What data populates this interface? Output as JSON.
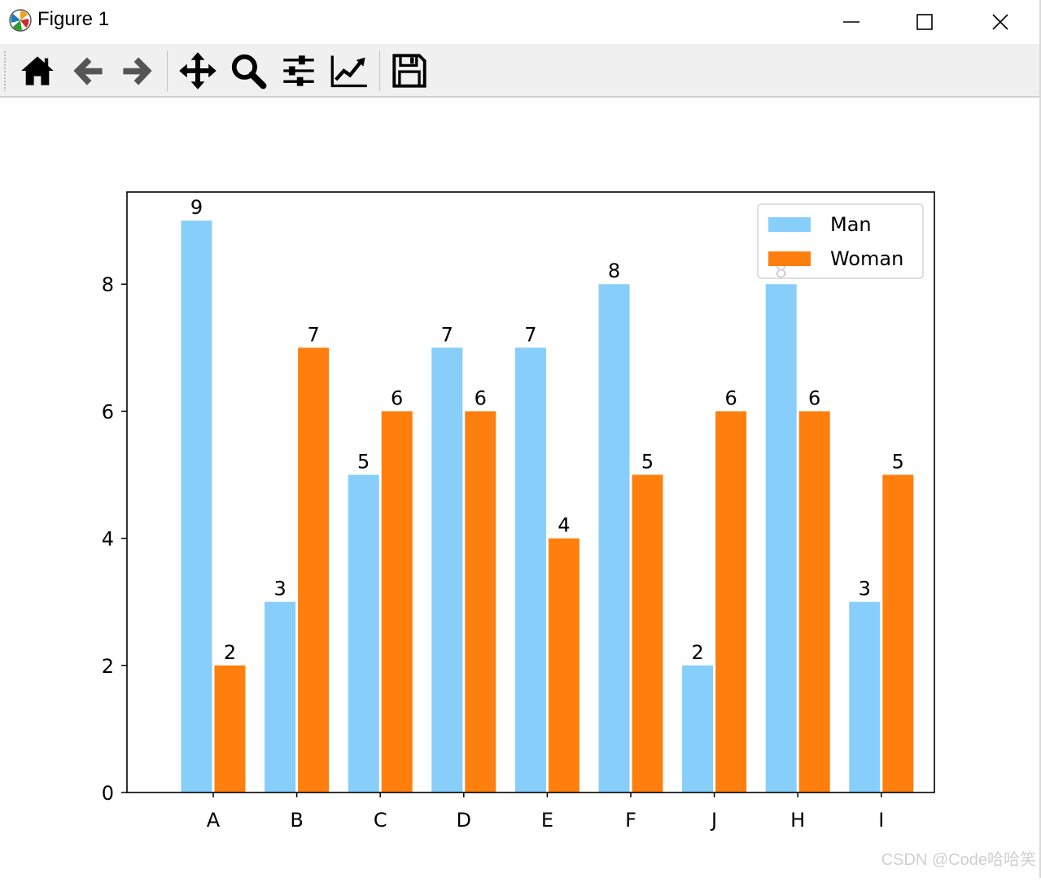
{
  "window": {
    "title": "Figure 1",
    "app_icon": "matplotlib-logo-icon",
    "controls": [
      "minimize-icon",
      "maximize-icon",
      "close-icon"
    ]
  },
  "toolbar": {
    "buttons": [
      {
        "icon": "home-icon"
      },
      {
        "icon": "back-arrow-icon"
      },
      {
        "icon": "forward-arrow-icon"
      },
      {
        "icon": "pan-icon"
      },
      {
        "icon": "zoom-icon"
      },
      {
        "icon": "subplots-config-icon"
      },
      {
        "icon": "edit-axis-icon"
      },
      {
        "icon": "save-icon"
      }
    ]
  },
  "chart_data": {
    "type": "bar",
    "categories": [
      "A",
      "B",
      "C",
      "D",
      "E",
      "F",
      "J",
      "H",
      "I"
    ],
    "series": [
      {
        "name": "Man",
        "values": [
          9,
          3,
          5,
          7,
          7,
          8,
          2,
          8,
          3
        ],
        "color": "#87CEFA"
      },
      {
        "name": "Woman",
        "values": [
          2,
          7,
          6,
          6,
          4,
          5,
          6,
          6,
          5
        ],
        "color": "#FF7F0E"
      }
    ],
    "yticks": [
      0,
      2,
      4,
      6,
      8
    ],
    "ylim": [
      0,
      9.45
    ],
    "title": "",
    "xlabel": "",
    "ylabel": "",
    "legend": "top-right",
    "grid": false
  },
  "watermark": "CSDN @Code哈哈笑"
}
